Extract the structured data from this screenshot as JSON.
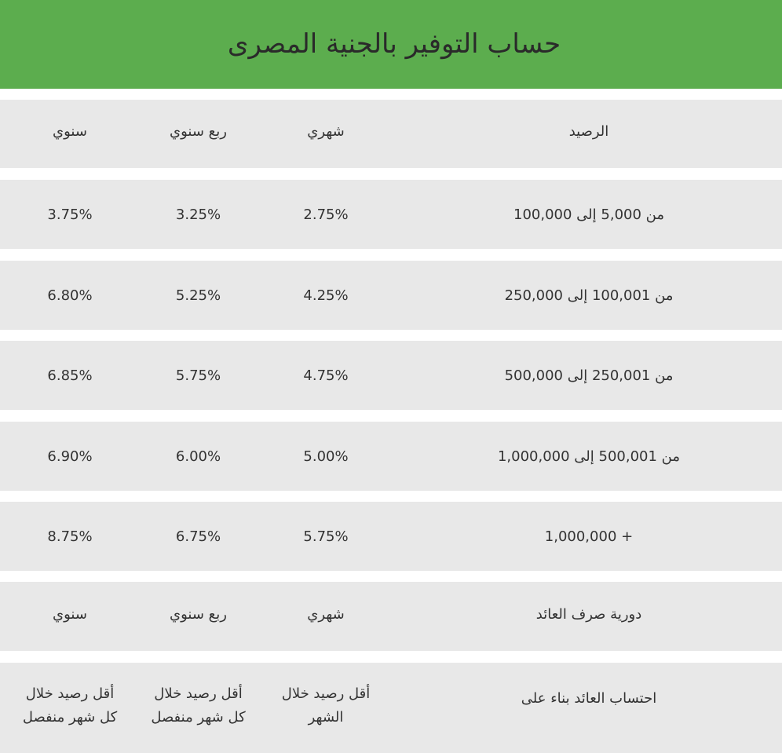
{
  "header": {
    "title": "حساب التوفير بالجنية المصرى"
  },
  "table": {
    "header_row": {
      "balance": "الرصيد",
      "monthly": "شهري",
      "quarterly": "ربع سنوي",
      "annual": "سنوي"
    },
    "rows": [
      {
        "balance": "من 5,000 إلى 100,000",
        "monthly": "2.75%",
        "quarterly": "3.25%",
        "annual": "3.75%"
      },
      {
        "balance": "من 100,001 إلى 250,000",
        "monthly": "4.25%",
        "quarterly": "5.25%",
        "annual": "6.80%"
      },
      {
        "balance": "من 250,001 إلى 500,000",
        "monthly": "4.75%",
        "quarterly": "5.75%",
        "annual": "6.85%"
      },
      {
        "balance": "من 500,001 إلى 1,000,000",
        "monthly": "5.00%",
        "quarterly": "6.00%",
        "annual": "6.90%"
      },
      {
        "balance": "1,000,000 +",
        "monthly": "5.75%",
        "quarterly": "6.75%",
        "annual": "8.75%"
      }
    ],
    "payout_row": {
      "label": "دورية صرف العائد",
      "monthly": "شهري",
      "quarterly": "ربع سنوي",
      "annual": "سنوي"
    },
    "calc_row": {
      "label": "احتساب العائد بناء على",
      "monthly_line1": "أقل رصيد خلال",
      "monthly_line2": "الشهر",
      "quarterly_line1": "أقل رصيد خلال",
      "quarterly_line2": "كل شهر منفصل",
      "annual_line1": "أقل رصيد خلال",
      "annual_line2": "كل شهر منفصل"
    }
  }
}
